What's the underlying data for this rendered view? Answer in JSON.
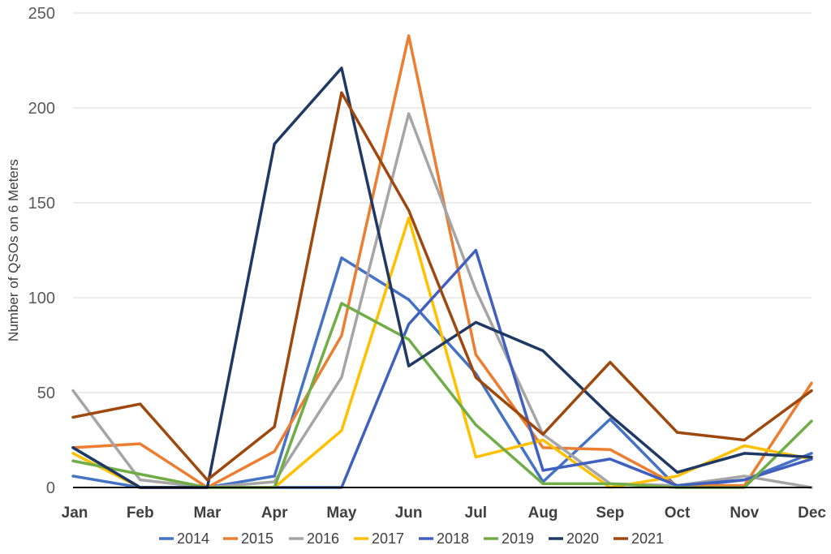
{
  "chart_data": {
    "type": "line",
    "title": "",
    "xlabel": "",
    "ylabel": "Number of QSOs on 6 Meters",
    "ylim": [
      0,
      250
    ],
    "yticks": [
      0,
      50,
      100,
      150,
      200,
      250
    ],
    "grid": true,
    "legend_position": "bottom",
    "categories": [
      "Jan",
      "Feb",
      "Mar",
      "Apr",
      "May",
      "Jun",
      "Jul",
      "Aug",
      "Sep",
      "Oct",
      "Nov",
      "Dec"
    ],
    "series": [
      {
        "name": "2014",
        "color": "#4472c4",
        "values": [
          6,
          0,
          0,
          6,
          121,
          99,
          60,
          3,
          36,
          0,
          4,
          18
        ]
      },
      {
        "name": "2015",
        "color": "#ed7d31",
        "values": [
          21,
          23,
          0,
          19,
          80,
          238,
          70,
          21,
          20,
          1,
          1,
          55
        ]
      },
      {
        "name": "2016",
        "color": "#a5a5a5",
        "values": [
          51,
          4,
          0,
          3,
          58,
          197,
          104,
          28,
          2,
          1,
          6,
          0
        ]
      },
      {
        "name": "2017",
        "color": "#ffc000",
        "values": [
          18,
          0,
          0,
          0,
          30,
          142,
          16,
          25,
          0,
          6,
          22,
          15
        ]
      },
      {
        "name": "2018",
        "color": "#4060c0",
        "values": [
          21,
          0,
          0,
          0,
          0,
          86,
          125,
          9,
          15,
          1,
          4,
          15
        ]
      },
      {
        "name": "2019",
        "color": "#70ad47",
        "values": [
          14,
          7,
          0,
          0,
          97,
          78,
          33,
          2,
          2,
          0,
          0,
          35
        ]
      },
      {
        "name": "2020",
        "color": "#1f3864",
        "values": [
          21,
          0,
          0,
          181,
          221,
          64,
          87,
          72,
          38,
          8,
          18,
          16
        ]
      },
      {
        "name": "2021",
        "color": "#9e480e",
        "values": [
          37,
          44,
          4,
          32,
          208,
          146,
          58,
          28,
          66,
          29,
          25,
          51
        ]
      }
    ]
  }
}
